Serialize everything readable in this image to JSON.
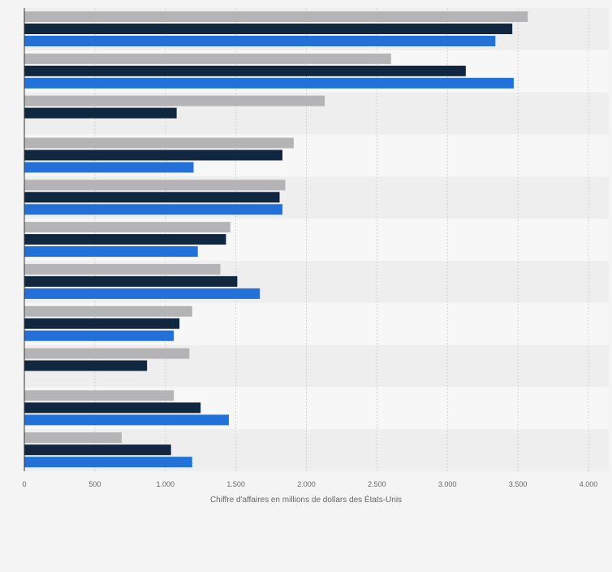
{
  "chart_data": {
    "type": "bar",
    "orientation": "horizontal",
    "title": "",
    "xlabel": "Chiffre d'affaires en millions de dollars des États-Unis",
    "ylabel": "",
    "xlim": [
      0,
      4000
    ],
    "x_ticks": [
      0,
      500,
      1000,
      1500,
      2000,
      2500,
      3000,
      3500,
      4000
    ],
    "x_tick_labels": [
      "0",
      "500",
      "1.000",
      "1.500",
      "2.000",
      "2.500",
      "3.000",
      "3.500",
      "4.000"
    ],
    "grid": true,
    "legend": "none",
    "categories": [
      "",
      "",
      "",
      "",
      "",
      "",
      "",
      "",
      "",
      "",
      ""
    ],
    "series": [
      {
        "name": "",
        "color": "#b4b4b6",
        "values": [
          3570,
          2600,
          2130,
          1910,
          1850,
          1460,
          1390,
          1190,
          1170,
          1060,
          690
        ]
      },
      {
        "name": "",
        "color": "#11263f",
        "values": [
          3460,
          3130,
          1080,
          1830,
          1810,
          1430,
          1510,
          1100,
          870,
          1250,
          1040
        ]
      },
      {
        "name": "",
        "color": "#2271d9",
        "values": [
          3340,
          3470,
          null,
          1200,
          1830,
          1230,
          1670,
          1060,
          null,
          1450,
          1190
        ]
      }
    ]
  }
}
